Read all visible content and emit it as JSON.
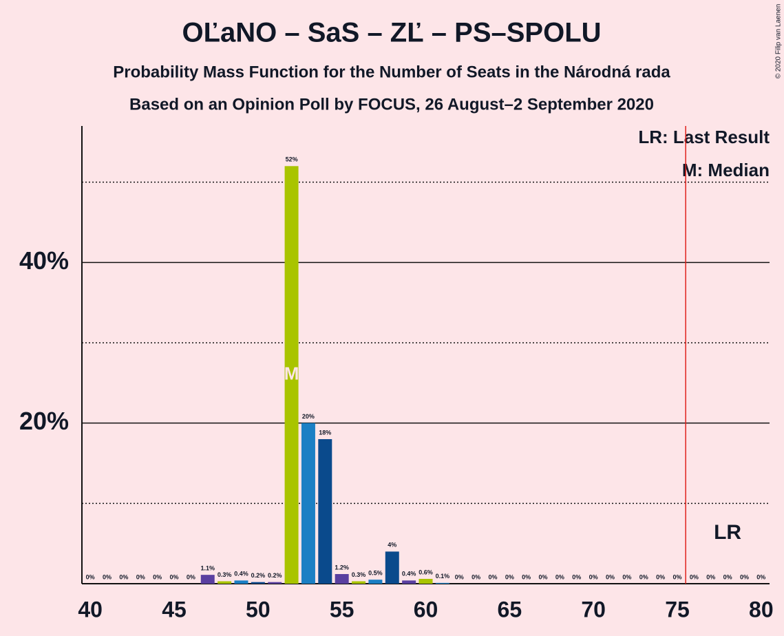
{
  "chart_data": {
    "type": "bar",
    "title": "OĽaNO – SaS – ZĽ – PS–SPOLU",
    "subtitle": "Probability Mass Function for the Number of Seats in the Národná rada",
    "subtitle2": "Based on an Opinion Poll by FOCUS, 26 August–2 September 2020",
    "copyright": "© 2020 Filip van Laenen",
    "legend": [
      "LR: Last Result",
      "M: Median"
    ],
    "median": 52,
    "median_label": "M",
    "last_result": 78,
    "last_result_label": "LR",
    "majority": 76,
    "x": [
      40,
      41,
      42,
      43,
      44,
      45,
      46,
      47,
      48,
      49,
      50,
      51,
      52,
      53,
      54,
      55,
      56,
      57,
      58,
      59,
      60,
      61,
      62,
      63,
      64,
      65,
      66,
      67,
      68,
      69,
      70,
      71,
      72,
      73,
      74,
      75,
      76,
      77,
      78,
      79,
      80
    ],
    "values": [
      0,
      0,
      0,
      0,
      0,
      0,
      0,
      1.1,
      0.3,
      0.4,
      0.2,
      0.2,
      52,
      20,
      18,
      1.2,
      0.3,
      0.5,
      4,
      0.4,
      0.6,
      0.1,
      0,
      0,
      0,
      0,
      0,
      0,
      0,
      0,
      0,
      0,
      0,
      0,
      0,
      0,
      0,
      0,
      0,
      0,
      0
    ],
    "value_labels": [
      "0%",
      "0%",
      "0%",
      "0%",
      "0%",
      "0%",
      "0%",
      "1.1%",
      "0.3%",
      "0.4%",
      "0.2%",
      "0.2%",
      "52%",
      "20%",
      "18%",
      "1.2%",
      "0.3%",
      "0.5%",
      "4%",
      "0.4%",
      "0.6%",
      "0.1%",
      "0%",
      "0%",
      "0%",
      "0%",
      "0%",
      "0%",
      "0%",
      "0%",
      "0%",
      "0%",
      "0%",
      "0%",
      "0%",
      "0%",
      "0%",
      "0%",
      "0%",
      "0%",
      "0%"
    ],
    "colors": [
      "#0a4a8c",
      "#5a3fa0",
      "#a9c400",
      "#1b7fc4",
      "#0a4a8c",
      "#5a3fa0",
      "#a9c400",
      "#5a3fa0",
      "#a9c400",
      "#1b7fc4",
      "#0a4a8c",
      "#5a3fa0",
      "#a9c400",
      "#1b7fc4",
      "#0a4a8c",
      "#5a3fa0",
      "#a9c400",
      "#1b7fc4",
      "#0a4a8c",
      "#5a3fa0",
      "#a9c400",
      "#1b7fc4",
      "#0a4a8c",
      "#5a3fa0",
      "#a9c400",
      "#1b7fc4",
      "#0a4a8c",
      "#5a3fa0",
      "#a9c400",
      "#1b7fc4",
      "#0a4a8c",
      "#5a3fa0",
      "#a9c400",
      "#1b7fc4",
      "#0a4a8c",
      "#5a3fa0",
      "#a9c400",
      "#1b7fc4",
      "#0a4a8c",
      "#5a3fa0",
      "#a9c400"
    ],
    "xlim": [
      39.5,
      80.5
    ],
    "xticks": [
      40,
      45,
      50,
      55,
      60,
      65,
      70,
      75,
      80
    ],
    "ylim": [
      0,
      57
    ],
    "yticks": [
      {
        "value": 20,
        "label": "20%"
      },
      {
        "value": 40,
        "label": "40%"
      }
    ],
    "y_minor_grid": [
      10,
      30,
      50
    ],
    "grid": true
  }
}
